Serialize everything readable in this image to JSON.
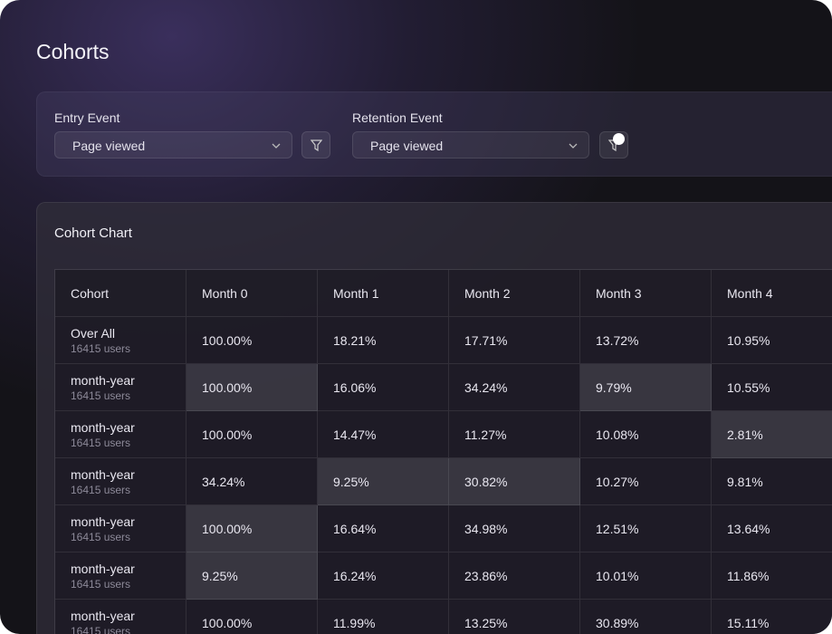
{
  "header": {
    "title": "Cohorts"
  },
  "filters": [
    {
      "label": "Entry Event",
      "value": "Page viewed"
    },
    {
      "label": "Retention Event",
      "value": "Page viewed"
    }
  ],
  "card": {
    "title": "Cohort Chart"
  },
  "table": {
    "columns": [
      "Cohort",
      "Month 0",
      "Month 1",
      "Month 2",
      "Month 3",
      "Month 4"
    ],
    "rows": [
      {
        "cohort": "Over All",
        "users": "16415 users",
        "values": [
          "100.00%",
          "18.21%",
          "17.71%",
          "13.72%",
          "10.95%"
        ]
      },
      {
        "cohort": "month-year",
        "users": "16415 users",
        "values": [
          "100.00%",
          "16.06%",
          "34.24%",
          "9.79%",
          "10.55%"
        ]
      },
      {
        "cohort": "month-year",
        "users": "16415 users",
        "values": [
          "100.00%",
          "14.47%",
          "11.27%",
          "10.08%",
          "2.81%"
        ]
      },
      {
        "cohort": "month-year",
        "users": "16415 users",
        "values": [
          "34.24%",
          "9.25%",
          "30.82%",
          "10.27%",
          "9.81%"
        ]
      },
      {
        "cohort": "month-year",
        "users": "16415 users",
        "values": [
          "100.00%",
          "16.64%",
          "34.98%",
          "12.51%",
          "13.64%"
        ]
      },
      {
        "cohort": "month-year",
        "users": "16415 users",
        "values": [
          "9.25%",
          "16.24%",
          "23.86%",
          "10.01%",
          "11.86%"
        ]
      },
      {
        "cohort": "month-year",
        "users": "16415 users",
        "values": [
          "100.00%",
          "11.99%",
          "13.25%",
          "30.89%",
          "15.11%"
        ]
      }
    ]
  }
}
